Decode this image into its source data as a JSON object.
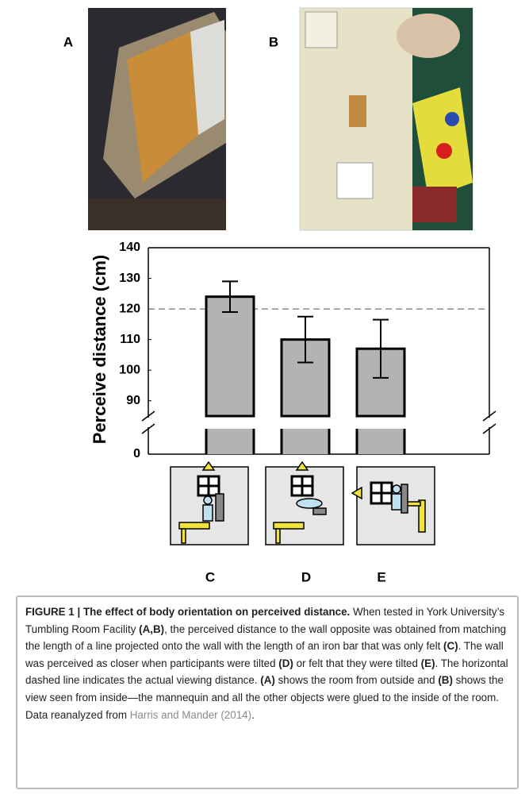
{
  "panels": [
    "A",
    "B"
  ],
  "chart_data": {
    "type": "bar",
    "y_label": "Perceive distance (cm)",
    "categories": [
      "C",
      "D",
      "E"
    ],
    "values": [
      124,
      110,
      107
    ],
    "errors": [
      5,
      7.5,
      9.5
    ],
    "color": "#b3b3b3",
    "reference_line": 120,
    "ylim": [
      0,
      140
    ],
    "axis_break": [
      0,
      85
    ],
    "yticks": [
      0,
      90,
      100,
      110,
      120,
      130,
      140
    ]
  },
  "caption": {
    "runs": [
      "FIGURE 1 | The effect of body orientation on perceived distance.",
      " When tested in York University’s Tumbling Room Facility ",
      "(A,B)",
      ", the perceived distance to the wall opposite was obtained from matching the length of a line projected onto the wall with the length of an iron bar that was only felt ",
      "(C)",
      ". The wall was perceived as closer when participants were tilted ",
      "(D)",
      " or felt that they were tilted ",
      "(E)",
      ". The horizontal dashed line indicates the actual viewing distance. ",
      "(A)",
      " shows the room from outside and ",
      "(B)",
      " shows the view seen from inside—the mannequin and all the other objects were glued to the inside of the room. Data reanalyzed from ",
      "Harris and Mander (2014)",
      "."
    ]
  }
}
